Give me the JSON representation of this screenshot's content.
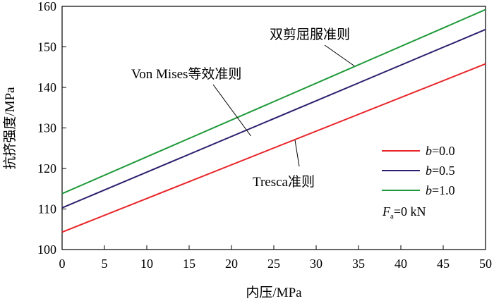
{
  "chart_data": {
    "type": "line",
    "title": "",
    "xlabel": "内压/MPa",
    "ylabel": "抗挤强度/MPa",
    "xlim": [
      0,
      50
    ],
    "ylim": [
      100,
      160
    ],
    "xticks": [
      0,
      5,
      10,
      15,
      20,
      25,
      30,
      35,
      40,
      45,
      50
    ],
    "yticks": [
      100,
      110,
      120,
      130,
      140,
      150,
      160
    ],
    "grid": false,
    "legend_position": "right-middle",
    "series": [
      {
        "name": "b=0.0",
        "b_label": "b",
        "b_value": "=0.0",
        "color": "#e8262a",
        "x": [
          0,
          50
        ],
        "y": [
          104.3,
          145.8
        ]
      },
      {
        "name": "b=0.5",
        "b_label": "b",
        "b_value": "=0.5",
        "color": "#2e1f6e",
        "x": [
          0,
          50
        ],
        "y": [
          110.3,
          154.3
        ]
      },
      {
        "name": "b=1.0",
        "b_label": "b",
        "b_value": "=1.0",
        "color": "#1f9a3a",
        "x": [
          0,
          50
        ],
        "y": [
          113.8,
          159.2
        ]
      }
    ],
    "annotations": [
      {
        "text": "双剪屈服准则",
        "pointer_to": {
          "x": 34.5,
          "y": 145.3
        }
      },
      {
        "text": "Von Mises等效准则",
        "pointer_to": {
          "x": 22.3,
          "y": 128.0
        }
      },
      {
        "text": "Tresca准则",
        "pointer_to": {
          "x": 27.5,
          "y": 127.0
        }
      }
    ],
    "legend_note": {
      "symbol": "F",
      "subscript": "a",
      "value": "=0 kN"
    }
  }
}
